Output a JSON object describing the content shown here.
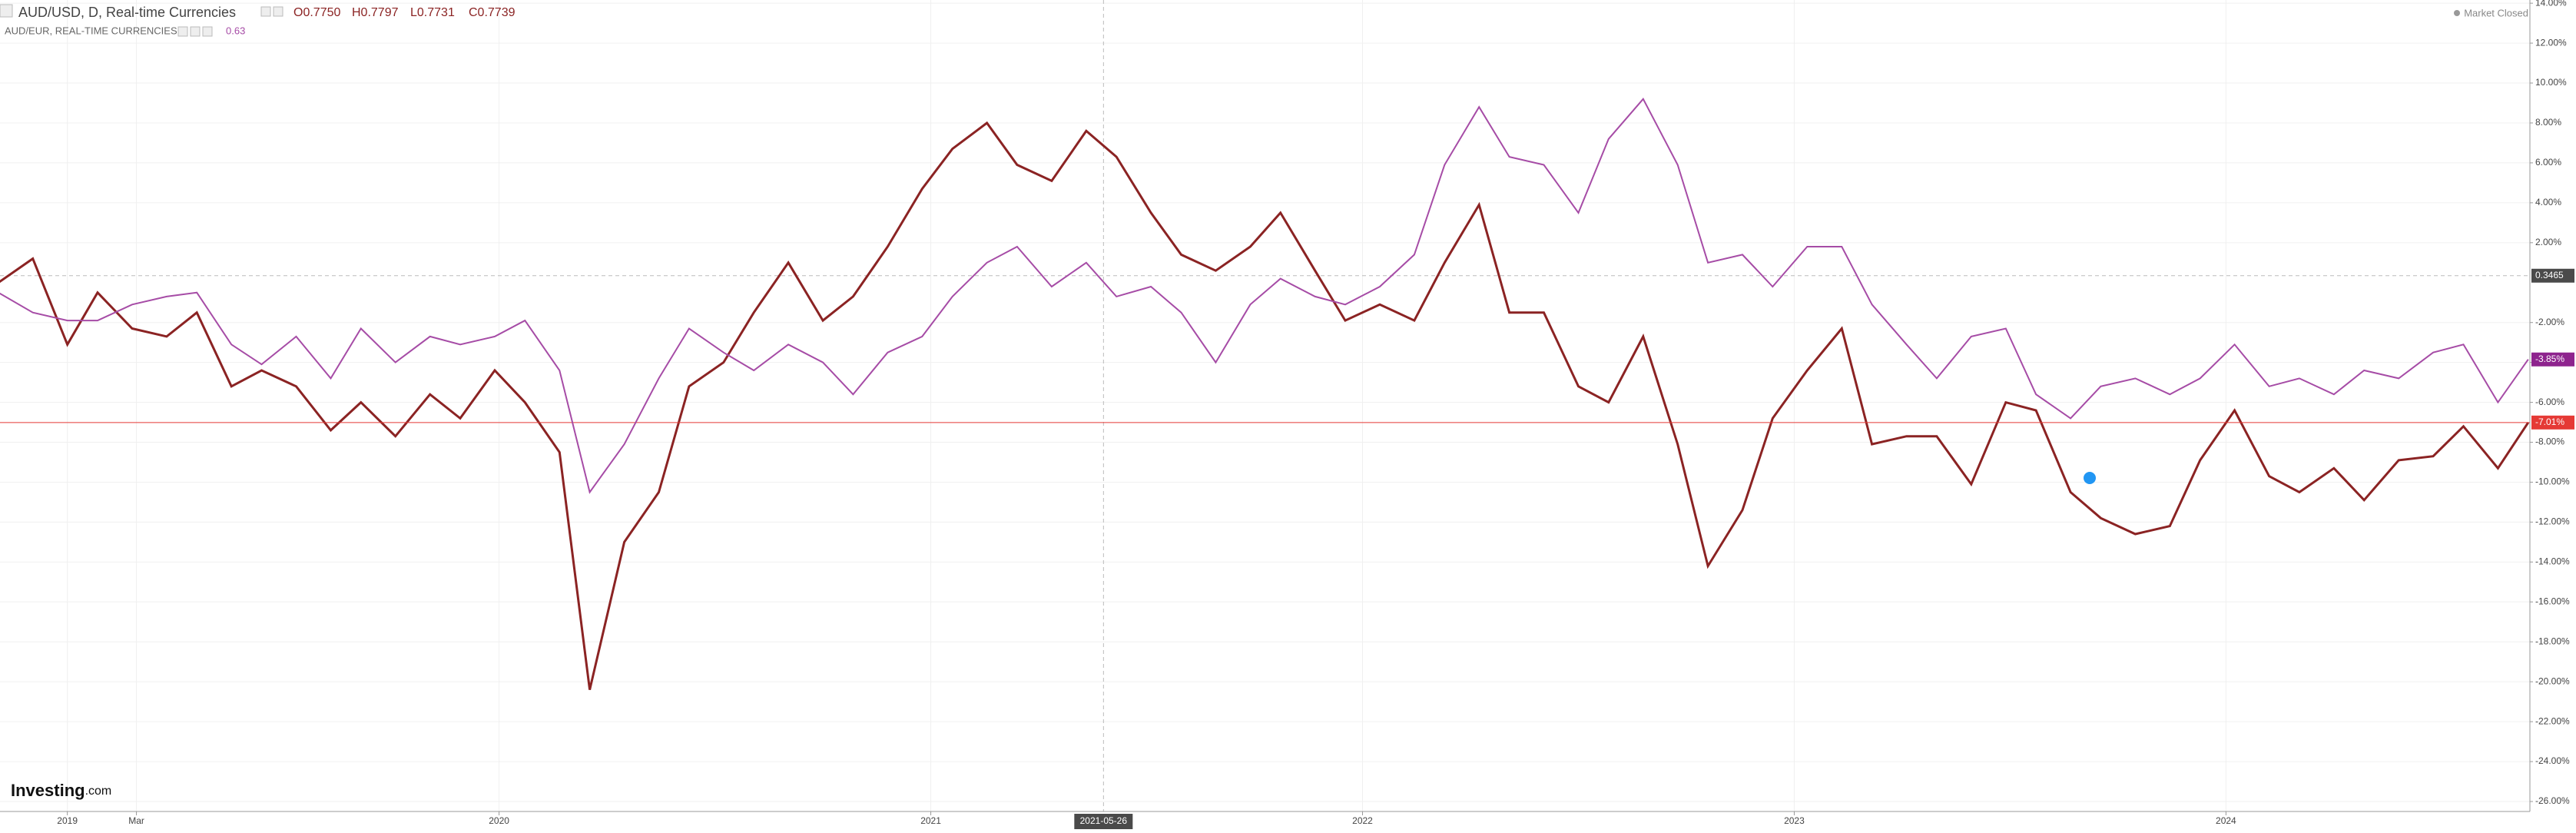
{
  "chart_data": {
    "type": "line",
    "ohlc": [
      "O0.7750",
      "H0.7797",
      "L0.7731",
      "C0.7739"
    ],
    "status": "Market Closed",
    "logo": "Investing",
    "logo_suffix": ".com",
    "x": [
      2018.84,
      2018.92,
      2019.0,
      2019.07,
      2019.15,
      2019.23,
      2019.3,
      2019.38,
      2019.45,
      2019.53,
      2019.61,
      2019.68,
      2019.76,
      2019.84,
      2019.91,
      2019.99,
      2020.06,
      2020.14,
      2020.21,
      2020.29,
      2020.37,
      2020.44,
      2020.52,
      2020.59,
      2020.67,
      2020.75,
      2020.82,
      2020.9,
      2020.98,
      2021.05,
      2021.13,
      2021.2,
      2021.28,
      2021.36,
      2021.43,
      2021.51,
      2021.58,
      2021.66,
      2021.74,
      2021.81,
      2021.89,
      2021.96,
      2022.04,
      2022.12,
      2022.19,
      2022.27,
      2022.34,
      2022.42,
      2022.5,
      2022.57,
      2022.65,
      2022.73,
      2022.8,
      2022.88,
      2022.95,
      2023.03,
      2023.11,
      2023.18,
      2023.26,
      2023.33,
      2023.41,
      2023.49,
      2023.56,
      2023.64,
      2023.71,
      2023.79,
      2023.87,
      2023.94,
      2024.02,
      2024.1,
      2024.17,
      2024.25,
      2024.32,
      2024.4,
      2024.48,
      2024.55,
      2024.63,
      2024.7
    ],
    "series": [
      {
        "name": "AUD/USD, D, Real-time Currencies",
        "color": "#8b2323",
        "last_label": {
          "value": -7.01,
          "label": "-7.01%"
        },
        "label_color": "#e53935",
        "values": [
          0.0,
          1.2,
          -3.1,
          -0.5,
          -2.3,
          -2.7,
          -1.5,
          -5.2,
          -4.4,
          -5.2,
          -7.4,
          -6.0,
          -7.7,
          -5.6,
          -6.8,
          -4.4,
          -6.0,
          -8.5,
          -20.4,
          -13.0,
          -10.5,
          -5.2,
          -4.0,
          -1.5,
          1.0,
          -1.9,
          -0.7,
          1.8,
          4.7,
          6.7,
          8.0,
          5.9,
          5.1,
          7.6,
          6.3,
          3.5,
          1.4,
          0.6,
          1.8,
          3.5,
          0.6,
          -1.9,
          -1.1,
          -1.9,
          1.0,
          3.9,
          -1.5,
          -1.5,
          -5.2,
          -6.0,
          -2.7,
          -8.1,
          -14.2,
          -11.4,
          -6.8,
          -4.4,
          -2.3,
          -8.1,
          -7.7,
          -7.7,
          -10.1,
          -6.0,
          -6.4,
          -10.5,
          -11.8,
          -12.6,
          -12.2,
          -8.9,
          -6.4,
          -9.7,
          -10.5,
          -9.3,
          -10.9,
          -8.9,
          -8.7,
          -7.2,
          -9.3,
          -7.01
        ]
      },
      {
        "name": "AUD/EUR, REAL-TIME CURRENCIES",
        "color": "#a64ca6",
        "current": "0.63",
        "last_label": {
          "value": -3.85,
          "label": "-3.85%"
        },
        "label_color": "#8e248e",
        "values": [
          -0.5,
          -1.5,
          -1.9,
          -1.9,
          -1.1,
          -0.7,
          -0.5,
          -3.1,
          -4.1,
          -2.7,
          -4.8,
          -2.3,
          -4.0,
          -2.7,
          -3.1,
          -2.7,
          -1.9,
          -4.4,
          -10.5,
          -8.1,
          -4.8,
          -2.3,
          -3.5,
          -4.4,
          -3.1,
          -4.0,
          -5.6,
          -3.5,
          -2.7,
          -0.7,
          1.0,
          1.8,
          -0.2,
          1.0,
          -0.7,
          -0.2,
          -1.5,
          -4.0,
          -1.1,
          0.2,
          -0.7,
          -1.1,
          -0.2,
          1.4,
          5.9,
          8.8,
          6.3,
          5.9,
          3.5,
          7.2,
          9.2,
          5.9,
          1.0,
          1.4,
          -0.2,
          1.8,
          1.8,
          -1.1,
          -3.1,
          -4.8,
          -2.7,
          -2.3,
          -5.6,
          -6.8,
          -5.2,
          -4.8,
          -5.6,
          -4.8,
          -3.1,
          -5.2,
          -4.8,
          -5.6,
          -4.4,
          -4.8,
          -3.5,
          -3.1,
          -6.0,
          -3.85
        ]
      }
    ],
    "crosshair_x": {
      "value": 2021.4,
      "label": "2021-05-26"
    },
    "crosshair_y": 0.3465,
    "xlim": [
      2018.844,
      2024.704
    ],
    "xticks": [
      2019,
      {
        "value": 2019.16,
        "label": "Mar"
      },
      2020,
      2021,
      2022,
      2023,
      2024
    ],
    "ylim": [
      -26.5,
      14.16
    ],
    "yticks": [
      {
        "value": 14,
        "label": "14.00%"
      },
      {
        "value": 12,
        "label": "12.00%"
      },
      {
        "value": 10,
        "label": "10.00%"
      },
      {
        "value": 8,
        "label": "8.00%"
      },
      {
        "value": 6,
        "label": "6.00%"
      },
      {
        "value": 4,
        "label": "4.00%"
      },
      {
        "value": 2,
        "label": "2.00%"
      },
      {
        "value": -2,
        "label": "-2.00%"
      },
      {
        "value": -4,
        "label": "-4.00%"
      },
      {
        "value": -6,
        "label": "-6.00%"
      },
      {
        "value": -8,
        "label": "-8.00%"
      },
      {
        "value": -10,
        "label": "-10.00%"
      },
      {
        "value": -12,
        "label": "-12.00%"
      },
      {
        "value": -14,
        "label": "-14.00%"
      },
      {
        "value": -16,
        "label": "-16.00%"
      },
      {
        "value": -18,
        "label": "-18.00%"
      },
      {
        "value": -20,
        "label": "-20.00%"
      },
      {
        "value": -22,
        "label": "-22.00%"
      },
      {
        "value": -24,
        "label": "-24.00%"
      },
      {
        "value": -26,
        "label": "-26.00%"
      }
    ],
    "grid": true
  }
}
